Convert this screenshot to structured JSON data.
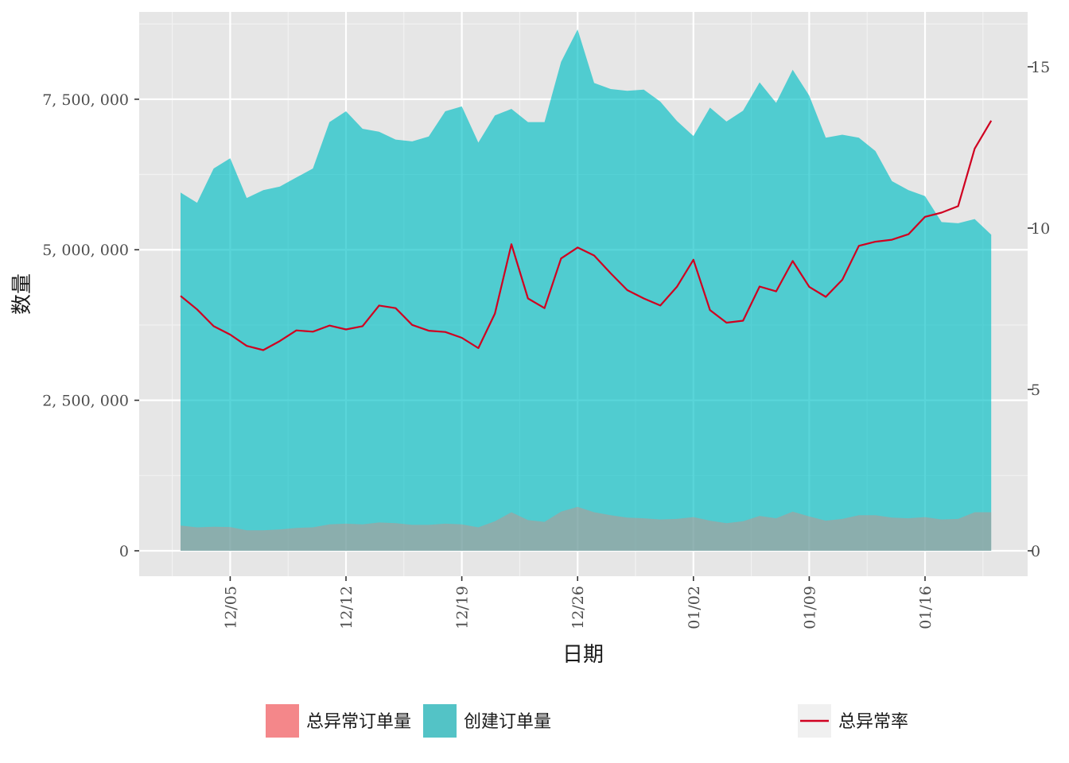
{
  "chart_data": {
    "type": "area",
    "x_start_date": "2021-12-02",
    "x": [
      "12/02",
      "12/03",
      "12/04",
      "12/05",
      "12/06",
      "12/07",
      "12/08",
      "12/09",
      "12/10",
      "12/11",
      "12/12",
      "12/13",
      "12/14",
      "12/15",
      "12/16",
      "12/17",
      "12/18",
      "12/19",
      "12/20",
      "12/21",
      "12/22",
      "12/23",
      "12/24",
      "12/25",
      "12/26",
      "12/27",
      "12/28",
      "12/29",
      "12/30",
      "12/31",
      "01/01",
      "01/02",
      "01/03",
      "01/04",
      "01/05",
      "01/06",
      "01/07",
      "01/08",
      "01/09",
      "01/10",
      "01/11",
      "01/12",
      "01/13",
      "01/14",
      "01/15",
      "01/16",
      "01/17",
      "01/18",
      "01/19",
      "01/20"
    ],
    "x_ticks": [
      "12/05",
      "12/12",
      "12/19",
      "12/26",
      "01/02",
      "01/09",
      "01/16"
    ],
    "xlabel": "日期",
    "ylabel": "数量",
    "ylim": [
      0,
      8950000
    ],
    "y_ticks": [
      {
        "value": 0,
        "label": "0"
      },
      {
        "value": 2500000,
        "label": "2, 500, 000"
      },
      {
        "value": 5000000,
        "label": "5, 000, 000"
      },
      {
        "value": 7500000,
        "label": "7, 500, 000"
      }
    ],
    "y2lim": [
      0,
      16.7
    ],
    "y2_ticks": [
      {
        "value": 0,
        "label": "0"
      },
      {
        "value": 5,
        "label": "5"
      },
      {
        "value": 10,
        "label": "10"
      },
      {
        "value": 15,
        "label": "15"
      }
    ],
    "series": [
      {
        "name": "创建订单量",
        "type": "area",
        "axis": "left",
        "color": "#00BFC4",
        "values": [
          5950000,
          5780000,
          6350000,
          6520000,
          5860000,
          5990000,
          6050000,
          6200000,
          6350000,
          7120000,
          7300000,
          7010000,
          6960000,
          6830000,
          6800000,
          6880000,
          7300000,
          7380000,
          6780000,
          7230000,
          7340000,
          7120000,
          7120000,
          8120000,
          8660000,
          7770000,
          7670000,
          7640000,
          7660000,
          7460000,
          7140000,
          6890000,
          7360000,
          7130000,
          7310000,
          7780000,
          7440000,
          7990000,
          7560000,
          6860000,
          6910000,
          6860000,
          6640000,
          6140000,
          5990000,
          5890000,
          5460000,
          5440000,
          5510000,
          5250000
        ]
      },
      {
        "name": "总异常订单量",
        "type": "area",
        "axis": "left",
        "color": "#F8766D",
        "values": [
          420000,
          390000,
          400000,
          395000,
          340000,
          340000,
          355000,
          380000,
          390000,
          440000,
          450000,
          440000,
          470000,
          460000,
          430000,
          430000,
          450000,
          440000,
          390000,
          490000,
          640000,
          510000,
          480000,
          650000,
          730000,
          640000,
          590000,
          550000,
          540000,
          520000,
          530000,
          560000,
          500000,
          460000,
          490000,
          580000,
          540000,
          650000,
          570000,
          500000,
          530000,
          590000,
          590000,
          550000,
          540000,
          560000,
          520000,
          530000,
          640000,
          640000
        ]
      },
      {
        "name": "总异常率",
        "type": "line",
        "axis": "right",
        "color": "#D00020",
        "values": [
          7.9,
          7.48,
          6.96,
          6.7,
          6.35,
          6.22,
          6.5,
          6.83,
          6.79,
          6.98,
          6.86,
          6.96,
          7.6,
          7.52,
          7.0,
          6.82,
          6.78,
          6.6,
          6.28,
          7.35,
          9.5,
          7.82,
          7.52,
          9.06,
          9.4,
          9.15,
          8.6,
          8.08,
          7.82,
          7.6,
          8.18,
          9.02,
          7.46,
          7.07,
          7.13,
          8.19,
          8.04,
          8.98,
          8.18,
          7.87,
          8.4,
          9.45,
          9.58,
          9.64,
          9.81,
          10.35,
          10.48,
          10.68,
          12.46,
          13.33
        ]
      }
    ],
    "legend": {
      "placement": "bottom",
      "fill_items": [
        "总异常订单量",
        "创建订单量"
      ],
      "line_items": [
        "总异常率"
      ]
    },
    "grid": true,
    "panel_color": "#E6E6E6"
  }
}
